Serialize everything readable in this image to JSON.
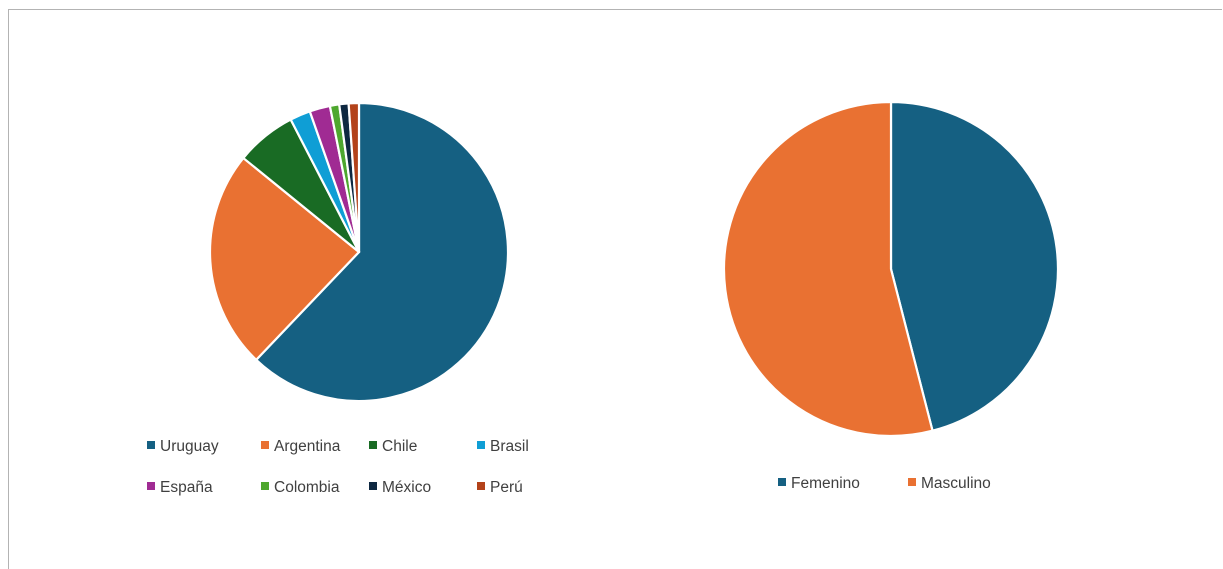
{
  "chart_data": [
    {
      "type": "pie",
      "title": "",
      "categories": [
        "Uruguay",
        "Argentina",
        "Chile",
        "Brasil",
        "España",
        "Colombia",
        "México",
        "Perú"
      ],
      "values": [
        61.5,
        23.5,
        6.5,
        2.2,
        2.2,
        1.0,
        1.0,
        1.1
      ],
      "unit": "%",
      "colors": [
        "#156082",
        "#e97132",
        "#196b24",
        "#0f9ed5",
        "#a02b93",
        "#4ea72e",
        "#0e2841",
        "#b3421a"
      ],
      "legend": "bottom"
    },
    {
      "type": "pie",
      "title": "",
      "categories": [
        "Femenino",
        "Masculino"
      ],
      "values": [
        46,
        54
      ],
      "unit": "%",
      "colors": [
        "#156082",
        "#e97132"
      ],
      "legend": "bottom"
    }
  ]
}
